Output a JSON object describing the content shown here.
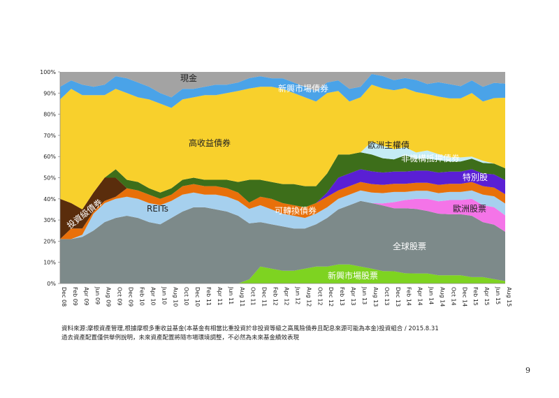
{
  "chart_data": {
    "type": "area",
    "stacked": true,
    "yticks": [
      "0%",
      "10%",
      "20%",
      "30%",
      "40%",
      "50%",
      "60%",
      "70%",
      "80%",
      "90%",
      "100%"
    ],
    "ylim": [
      0,
      100
    ],
    "categories": [
      "Dec 08",
      "Feb 09",
      "Apr 09",
      "Jun 09",
      "Aug 09",
      "Oct 09",
      "Dec 09",
      "Feb 10",
      "Apr 10",
      "Jun 10",
      "Aug 10",
      "Oct 10",
      "Dec 10",
      "Feb 11",
      "Apr 11",
      "Jun 11",
      "Aug 11",
      "Oct 11",
      "Dec 11",
      "Feb 12",
      "Apr 12",
      "Jun 12",
      "Aug 12",
      "Oct 12",
      "Dec 12",
      "Feb 13",
      "Apr 13",
      "Jun 13",
      "Aug 13",
      "Oct 13",
      "Dec 13",
      "Feb 14",
      "Apr 14",
      "Jun 14",
      "Aug 14",
      "Oct 14",
      "Dec 14",
      "Feb 15",
      "Apr 15",
      "Jun 15",
      "Aug 15"
    ],
    "series": [
      {
        "name": "新興市場股票",
        "color": "#7ed321",
        "labelColor": "#ffffff",
        "values": [
          0,
          0,
          0,
          0,
          0,
          0,
          0,
          0,
          0,
          0,
          0,
          0,
          0,
          0,
          0,
          0,
          0,
          2,
          8,
          7,
          6,
          6,
          7,
          8,
          8,
          9,
          9,
          8,
          7,
          6,
          6,
          5,
          5,
          5,
          4,
          4,
          4,
          3,
          3,
          2,
          1
        ]
      },
      {
        "name": "全球股票",
        "color": "#7d8a8a",
        "labelColor": "#ffffff",
        "values": [
          21,
          21,
          22,
          25,
          29,
          31,
          32,
          31,
          29,
          28,
          31,
          34,
          36,
          36,
          35,
          34,
          32,
          27,
          21,
          21,
          21,
          20,
          19,
          20,
          23,
          26,
          28,
          31,
          31,
          32,
          31,
          32,
          32,
          31,
          30,
          30,
          30,
          29,
          26,
          25,
          21
        ]
      },
      {
        "name": "歐洲股票",
        "color": "#f474e8",
        "labelColor": "#222222",
        "values": [
          0,
          0,
          0,
          0,
          0,
          0,
          0,
          0,
          0,
          0,
          0,
          0,
          0,
          0,
          0,
          0,
          0,
          0,
          0,
          0,
          0,
          0,
          0,
          0,
          0,
          0,
          0,
          0,
          0,
          1,
          3,
          4,
          5,
          6,
          6,
          7,
          7,
          8,
          8,
          8,
          7
        ]
      },
      {
        "name": "REITs",
        "color": "#a6d0ee",
        "labelColor": "#222222",
        "values": [
          0,
          0,
          1,
          8,
          9,
          9,
          9,
          9,
          9,
          9,
          8,
          8,
          7,
          6,
          7,
          7,
          7,
          7,
          8,
          7,
          6,
          6,
          5,
          5,
          5,
          5,
          5,
          5,
          5,
          5,
          5,
          4,
          4,
          4,
          4,
          4,
          4,
          4,
          5,
          5,
          5
        ]
      },
      {
        "name": "可轉換債券",
        "color": "#e8700a",
        "labelColor": "#ffffff",
        "values": [
          0,
          5,
          3,
          1,
          1,
          1,
          4,
          4,
          4,
          3,
          3,
          4,
          4,
          4,
          4,
          4,
          4,
          3,
          4,
          5,
          5,
          5,
          5,
          5,
          5,
          4,
          4,
          4,
          4,
          4,
          4,
          4,
          4,
          4,
          4,
          4,
          4,
          4,
          4,
          4,
          4
        ]
      },
      {
        "name": "特別股",
        "color": "#5a1fd4",
        "labelColor": "#ffffff",
        "values": [
          0,
          0,
          0,
          0,
          0,
          0,
          0,
          0,
          0,
          0,
          0,
          0,
          0,
          0,
          0,
          0,
          0,
          0,
          0,
          0,
          0,
          0,
          0,
          0,
          2,
          6,
          6,
          6,
          6,
          6,
          6,
          6,
          6,
          6,
          6,
          6,
          6,
          6,
          6,
          6,
          6
        ]
      },
      {
        "name": "投資級債券",
        "color": "#5a2d0c",
        "labelColor": "#ffffff",
        "values": [
          19,
          12,
          9,
          9,
          11,
          9,
          0,
          0,
          0,
          0,
          0,
          0,
          0,
          0,
          0,
          0,
          0,
          0,
          0,
          0,
          0,
          0,
          0,
          0,
          0,
          0,
          0,
          0,
          0,
          0,
          0,
          0,
          0,
          0,
          0,
          0,
          0,
          0,
          0,
          0,
          0
        ]
      },
      {
        "name": "非機構抵押債券",
        "color": "#3d6e1a",
        "labelColor": "#ffffff",
        "values": [
          0,
          0,
          0,
          0,
          0,
          4,
          4,
          4,
          3,
          3,
          3,
          3,
          3,
          3,
          3,
          4,
          5,
          11,
          8,
          8,
          9,
          10,
          10,
          8,
          9,
          11,
          9,
          8,
          8,
          7,
          6,
          8,
          6,
          6,
          6,
          5,
          5,
          5,
          5,
          5,
          5
        ]
      },
      {
        "name": "歐洲主權債",
        "color": "#c5ecf5",
        "labelColor": "#222222",
        "values": [
          0,
          0,
          0,
          0,
          0,
          0,
          0,
          0,
          0,
          0,
          0,
          0,
          0,
          0,
          0,
          0,
          0,
          0,
          0,
          0,
          0,
          0,
          0,
          0,
          0,
          0,
          0,
          0,
          6,
          6,
          5,
          4,
          3,
          4,
          3,
          2,
          2,
          1,
          1,
          0,
          0
        ]
      },
      {
        "name": "高收益債券",
        "color": "#f8d02c",
        "labelColor": "#222222",
        "values": [
          47,
          54,
          54,
          46,
          39,
          38,
          41,
          40,
          42,
          42,
          38,
          38,
          38,
          40,
          40,
          41,
          43,
          44,
          44,
          45,
          45,
          43,
          42,
          40,
          38,
          30,
          25,
          26,
          27,
          28,
          29,
          29,
          30,
          28,
          28,
          29,
          29,
          30,
          28,
          30,
          30
        ]
      },
      {
        "name": "新興市場債券",
        "color": "#4aa3e8",
        "labelColor": "#ffffff",
        "values": [
          6,
          4,
          5,
          4,
          5,
          6,
          7,
          7,
          6,
          5,
          5,
          5,
          4,
          4,
          5,
          4,
          4,
          5,
          5,
          4,
          5,
          5,
          5,
          5,
          5,
          5,
          6,
          5,
          5,
          6,
          5,
          5,
          6,
          5,
          7,
          7,
          6,
          6,
          7,
          7,
          6
        ]
      },
      {
        "name": "現金",
        "color": "#a3a3a3",
        "labelColor": "#222222",
        "values": [
          7,
          4,
          6,
          7,
          6,
          2,
          3,
          5,
          7,
          10,
          12,
          8,
          8,
          7,
          6,
          6,
          5,
          3,
          2,
          3,
          3,
          5,
          7,
          9,
          5,
          4,
          8,
          7,
          1,
          2,
          4,
          3,
          4,
          6,
          5,
          6,
          7,
          4,
          7,
          5,
          5
        ]
      }
    ],
    "labels": [
      {
        "series": "現金",
        "text": "現金"
      },
      {
        "series": "新興市場債券",
        "text": "新興市場債券"
      },
      {
        "series": "高收益債券",
        "text": "高收益債券"
      },
      {
        "series": "歐洲主權債",
        "text": "歐洲主權債"
      },
      {
        "series": "非機構抵押債券",
        "text": "非機構抵押債券"
      },
      {
        "series": "特別股",
        "text": "特別股"
      },
      {
        "series": "投資級債券",
        "text": "投資級債券"
      },
      {
        "series": "REITs",
        "text": "REITs"
      },
      {
        "series": "可轉換債券",
        "text": "可轉換債券"
      },
      {
        "series": "歐洲股票",
        "text": "歐洲股票"
      },
      {
        "series": "全球股票",
        "text": "全球股票"
      },
      {
        "series": "新興市場股票",
        "text": "新興市場股票"
      }
    ]
  },
  "footer": {
    "source_line1": "資料來源:摩根資產管理,根據摩根多重收益基金(本基金有相當比重投資於非投資等級之高風險債券且配息來源可能為本金)投資組合 / 2015.8.31",
    "source_line2": "過去資產配置僅供舉例說明，未來資產配置將隨市場環境調整，不必然為未來基金績效表現"
  },
  "page_number": "9"
}
